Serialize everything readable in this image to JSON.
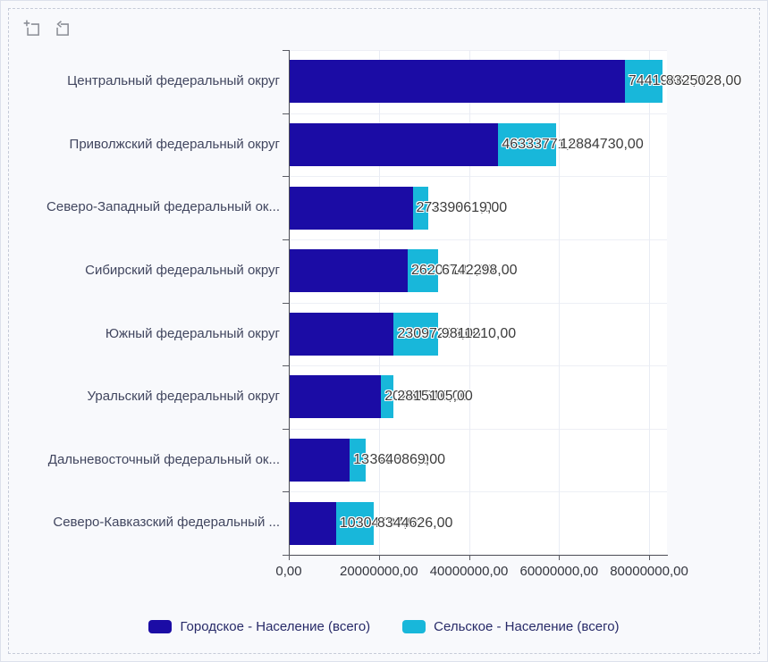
{
  "toolbox": {
    "icons": [
      {
        "name": "data-zoom-icon"
      },
      {
        "name": "zoom-reset-icon"
      }
    ]
  },
  "chart_data": {
    "type": "bar",
    "orientation": "horizontal",
    "stacked": true,
    "title": "",
    "grid": true,
    "categories": [
      "Центральный федеральный округ",
      "Приволжский федеральный округ",
      "Северо-Западный федеральный ок...",
      "Сибирский федеральный округ",
      "Южный федеральный округ",
      "Уральский федеральный округ",
      "Дальневосточный федеральный ок...",
      "Северо-Кавказский федеральный ..."
    ],
    "series": [
      {
        "name": "Городское - Население (всего)",
        "color": "#1b0ca5",
        "values": [
          74419867,
          46333771,
          27290861,
          26207182,
          23097299,
          20281510,
          13340806,
          10304797
        ],
        "labels": [
          "74419867,00",
          "46333771,00",
          "27290861,00",
          "26207182,00",
          "23097299,00",
          "20281510,00",
          "13340806,00",
          "10304797,00"
        ]
      },
      {
        "name": "Сельское - Население (всего)",
        "color": "#18b7da",
        "values": [
          8325028,
          12884730,
          3390619,
          6742298,
          9811210,
          2815105,
          3640869,
          8344626
        ],
        "labels": [
          "8325028,00",
          "12884730,00",
          "3390619,00",
          "6742298,00",
          "9811210,00",
          "2815105,00",
          "3640869,00",
          "8344626,00"
        ]
      }
    ],
    "x_axis": {
      "min": 0,
      "max": 84400000,
      "ticks": [
        {
          "value": 0,
          "label": "0,00"
        },
        {
          "value": 20000000,
          "label": "20000000,00"
        },
        {
          "value": 40000000,
          "label": "40000000,00"
        },
        {
          "value": 60000000,
          "label": "60000000,00"
        },
        {
          "value": 80000000,
          "label": "80000000,00"
        }
      ]
    },
    "legend": {
      "position": "bottom",
      "items": [
        "Городское - Население (всего)",
        "Сельское - Население (всего)"
      ]
    }
  }
}
